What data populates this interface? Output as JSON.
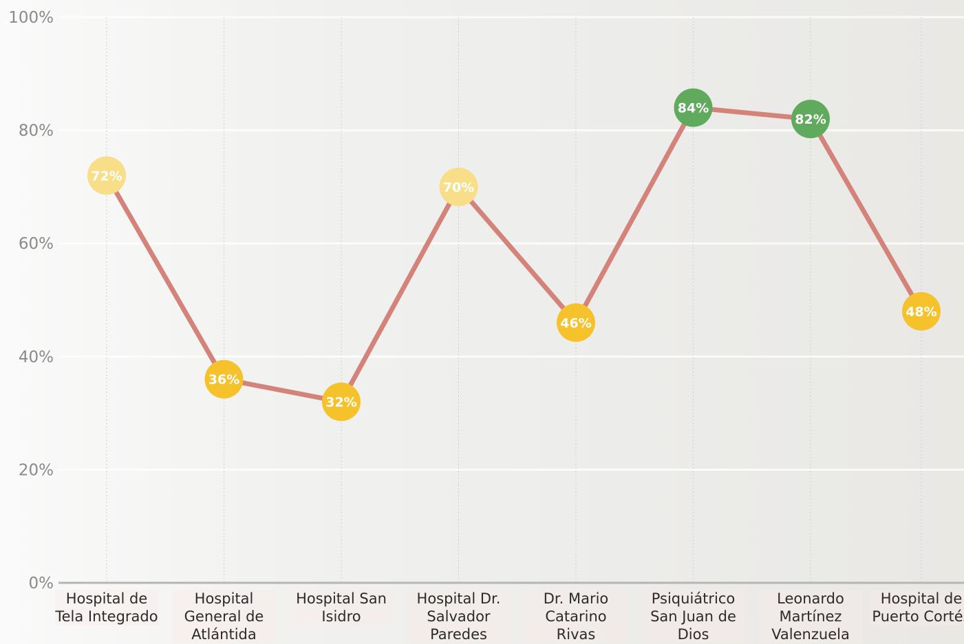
{
  "chart_data": {
    "type": "line",
    "categories": [
      "Hospital de Tela Integrado",
      "Hospital General de Atlántida",
      "Hospital San Isidro",
      "Hospital Dr. Salvador Paredes",
      "Dr. Mario Catarino Rivas",
      "Psiquiátrico San Juan de Dios",
      "Leonardo Martínez Valenzuela",
      "Hospital de Puerto Cortés"
    ],
    "values": [
      72,
      36,
      32,
      70,
      46,
      84,
      82,
      48
    ],
    "value_labels": [
      "72%",
      "36%",
      "32%",
      "70%",
      "46%",
      "84%",
      "82%",
      "48%"
    ],
    "color": "#d4837a",
    "point_colors": [
      "#f9de8a",
      "#f6c22c",
      "#f6c22c",
      "#f9de8a",
      "#f6c22c",
      "#5faa5c",
      "#5faa5c",
      "#f6c22c"
    ],
    "ylim": [
      0,
      100
    ],
    "yticks": [
      {
        "value": 0,
        "label": "0%"
      },
      {
        "value": 20,
        "label": "20%"
      },
      {
        "value": 40,
        "label": "40%"
      },
      {
        "value": 60,
        "label": "60%"
      },
      {
        "value": 80,
        "label": "80%"
      },
      {
        "value": 100,
        "label": "100%"
      }
    ],
    "grid": true
  }
}
